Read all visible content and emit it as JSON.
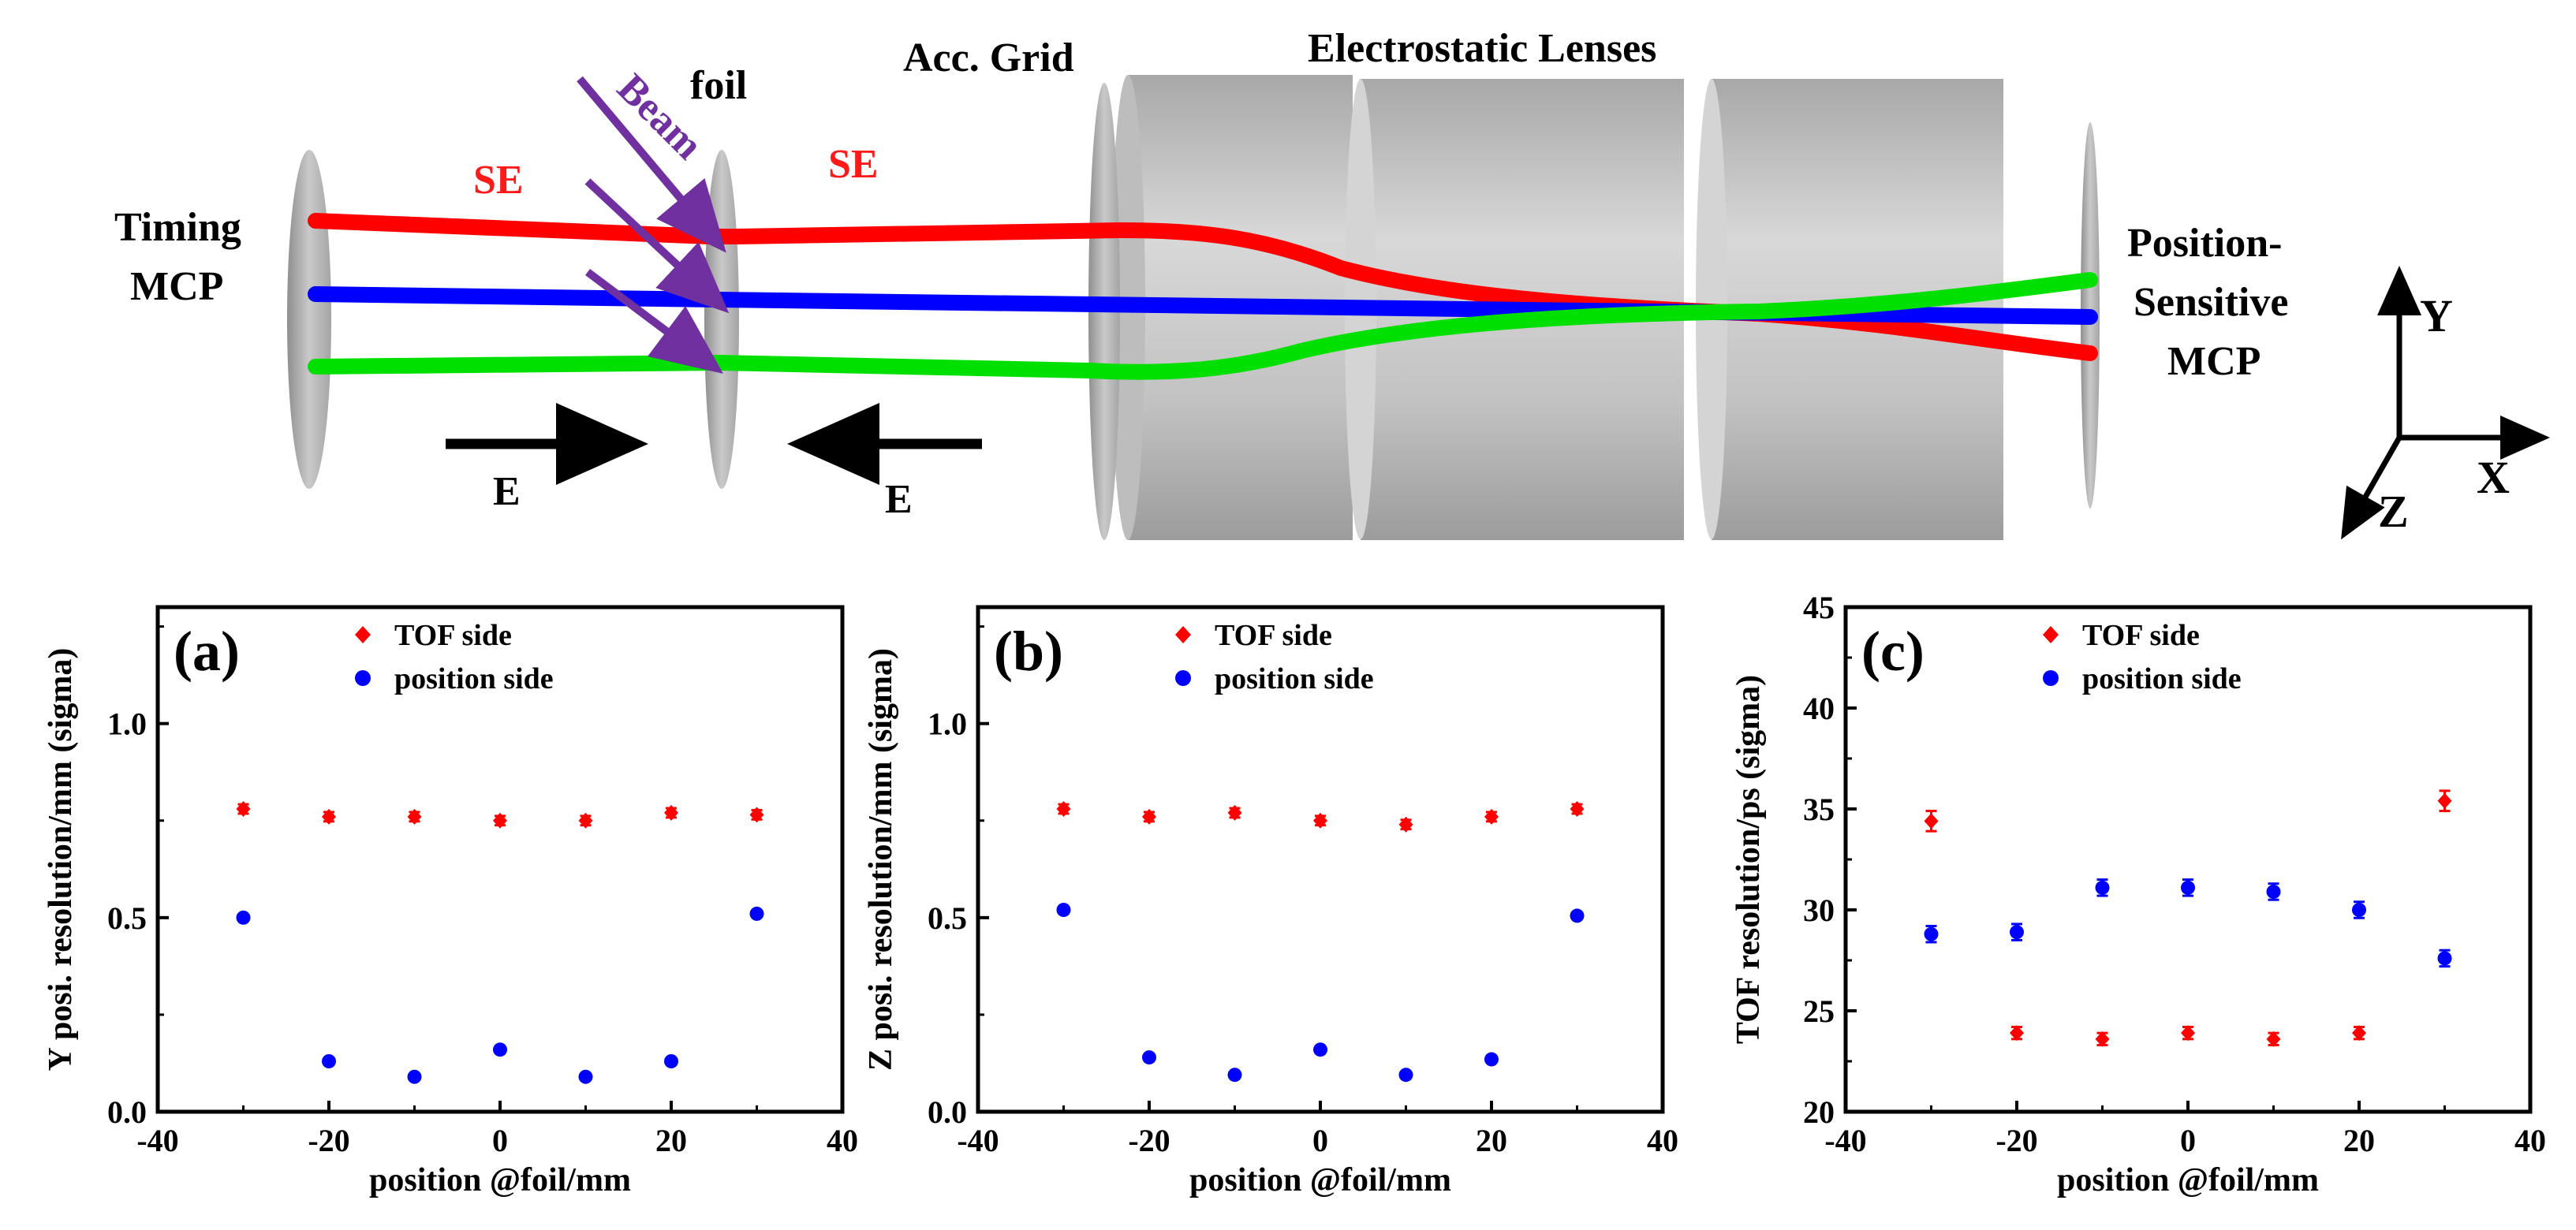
{
  "schematic": {
    "labels": {
      "timing_line1": "Timing",
      "timing_line2": "MCP",
      "se_left": "SE",
      "se_right": "SE",
      "beam": "Beam",
      "foil": "foil",
      "acc_grid": "Acc. Grid",
      "lenses": "Electrostatic Lenses",
      "psmcp_line1": "Position-",
      "psmcp_line2": "Sensitive",
      "psmcp_line3": "MCP",
      "e_left": "E",
      "e_right": "E"
    },
    "axes": {
      "y": "Y",
      "x": "X",
      "z": "Z"
    },
    "colors": {
      "se_label": "#ff1a1a",
      "beam": "#7030a0",
      "traj_top": "#ff0000",
      "traj_mid": "#0000ff",
      "traj_bottom": "#00e000",
      "hardware": "#b9b9b9"
    }
  },
  "chart_data": [
    {
      "type": "scatter",
      "panel_label": "(a)",
      "xlabel": "position @foil/mm",
      "ylabel": "Y posi. resolution/mm (sigma)",
      "xlim": [
        -40,
        40
      ],
      "ylim": [
        0,
        1.3
      ],
      "xticks": [
        -40,
        -20,
        0,
        20,
        40
      ],
      "yticks": [
        0.0,
        0.5,
        1.0
      ],
      "ytick_labels": [
        "0.0",
        "0.5",
        "1.0"
      ],
      "legend_position": "top-left",
      "series": [
        {
          "name": "TOF side",
          "color": "#ff0000",
          "marker": "diamond",
          "x": [
            -30,
            -20,
            -10,
            0,
            10,
            20,
            30
          ],
          "y": [
            0.78,
            0.76,
            0.76,
            0.75,
            0.75,
            0.77,
            0.765
          ],
          "err": [
            0.012,
            0.012,
            0.012,
            0.012,
            0.012,
            0.012,
            0.012
          ]
        },
        {
          "name": "position side",
          "color": "#0000ff",
          "marker": "circle",
          "x": [
            -30,
            -20,
            -10,
            0,
            10,
            20,
            30
          ],
          "y": [
            0.5,
            0.13,
            0.09,
            0.16,
            0.09,
            0.13,
            0.51
          ],
          "err": [
            0.005,
            0.005,
            0.005,
            0.005,
            0.005,
            0.005,
            0.005
          ]
        }
      ]
    },
    {
      "type": "scatter",
      "panel_label": "(b)",
      "xlabel": "position @foil/mm",
      "ylabel": "Z posi. resolution/mm (sigma)",
      "xlim": [
        -40,
        40
      ],
      "ylim": [
        0,
        1.3
      ],
      "xticks": [
        -40,
        -20,
        0,
        20,
        40
      ],
      "yticks": [
        0.0,
        0.5,
        1.0
      ],
      "ytick_labels": [
        "0.0",
        "0.5",
        "1.0"
      ],
      "legend_position": "top-left",
      "series": [
        {
          "name": "TOF side",
          "color": "#ff0000",
          "marker": "diamond",
          "x": [
            -30,
            -20,
            -10,
            0,
            10,
            20,
            30
          ],
          "y": [
            0.78,
            0.76,
            0.77,
            0.75,
            0.74,
            0.76,
            0.78
          ],
          "err": [
            0.012,
            0.012,
            0.012,
            0.012,
            0.012,
            0.012,
            0.012
          ]
        },
        {
          "name": "position side",
          "color": "#0000ff",
          "marker": "circle",
          "x": [
            -30,
            -20,
            -10,
            0,
            10,
            20,
            30
          ],
          "y": [
            0.52,
            0.14,
            0.095,
            0.16,
            0.095,
            0.135,
            0.505
          ],
          "err": [
            0.005,
            0.005,
            0.005,
            0.005,
            0.005,
            0.005,
            0.005
          ]
        }
      ]
    },
    {
      "type": "scatter",
      "panel_label": "(c)",
      "xlabel": "position @foil/mm",
      "ylabel": "TOF resolution/ps (sigma)",
      "xlim": [
        -40,
        40
      ],
      "ylim": [
        20,
        45
      ],
      "xticks": [
        -40,
        -20,
        0,
        20,
        40
      ],
      "yticks": [
        20,
        25,
        30,
        35,
        40,
        45
      ],
      "ytick_labels": [
        "20",
        "25",
        "30",
        "35",
        "40",
        "45"
      ],
      "legend_position": "top-left",
      "series": [
        {
          "name": "TOF side",
          "color": "#ff0000",
          "marker": "diamond",
          "x": [
            -30,
            -20,
            -10,
            0,
            10,
            20,
            30
          ],
          "y": [
            34.4,
            23.9,
            23.6,
            23.9,
            23.6,
            23.9,
            35.4
          ],
          "err": [
            0.5,
            0.3,
            0.3,
            0.3,
            0.3,
            0.3,
            0.5
          ]
        },
        {
          "name": "position side",
          "color": "#0000ff",
          "marker": "circle",
          "x": [
            -30,
            -20,
            -10,
            0,
            10,
            20,
            30
          ],
          "y": [
            28.8,
            28.9,
            31.1,
            31.1,
            30.9,
            30.0,
            27.6
          ],
          "err": [
            0.4,
            0.4,
            0.4,
            0.4,
            0.4,
            0.4,
            0.4
          ]
        }
      ]
    }
  ]
}
